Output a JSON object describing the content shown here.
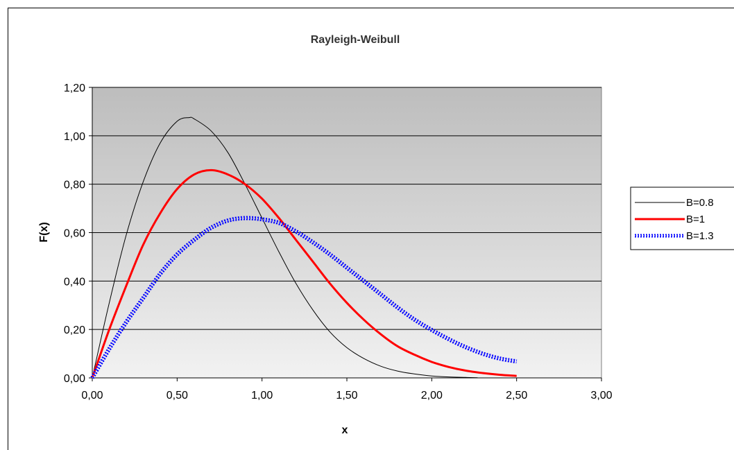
{
  "chart_data": {
    "type": "line",
    "title": "Rayleigh-Weibull",
    "xlabel": "x",
    "ylabel": "F(x)",
    "xlim": [
      0,
      3
    ],
    "ylim": [
      0,
      1.2
    ],
    "x_ticks": [
      "0,00",
      "0,50",
      "1,00",
      "1,50",
      "2,00",
      "2,50",
      "3,00"
    ],
    "y_ticks": [
      "0,00",
      "0,20",
      "0,40",
      "0,60",
      "0,80",
      "1,00",
      "1,20"
    ],
    "grid": "horizontal",
    "legend_position": "right",
    "series": [
      {
        "name": "B=0.8",
        "color": "#000000",
        "style": "thin-line",
        "points": [
          [
            0,
            0
          ],
          [
            0.1,
            0.31
          ],
          [
            0.2,
            0.59
          ],
          [
            0.3,
            0.81
          ],
          [
            0.4,
            0.97
          ],
          [
            0.5,
            1.06
          ],
          [
            0.57,
            1.075
          ],
          [
            0.6,
            1.07
          ],
          [
            0.7,
            1.02
          ],
          [
            0.8,
            0.93
          ],
          [
            0.9,
            0.8
          ],
          [
            1.0,
            0.66
          ],
          [
            1.1,
            0.52
          ],
          [
            1.2,
            0.39
          ],
          [
            1.3,
            0.28
          ],
          [
            1.4,
            0.19
          ],
          [
            1.5,
            0.125
          ],
          [
            1.6,
            0.08
          ],
          [
            1.7,
            0.048
          ],
          [
            1.8,
            0.028
          ],
          [
            1.9,
            0.016
          ],
          [
            2.0,
            0.008
          ],
          [
            2.1,
            0.004
          ],
          [
            2.2,
            0.002
          ],
          [
            2.27,
            0.001
          ]
        ]
      },
      {
        "name": "B=1",
        "color": "#ff0000",
        "style": "thick-line",
        "points": [
          [
            0,
            0
          ],
          [
            0.1,
            0.2
          ],
          [
            0.2,
            0.38
          ],
          [
            0.3,
            0.55
          ],
          [
            0.4,
            0.68
          ],
          [
            0.5,
            0.78
          ],
          [
            0.6,
            0.84
          ],
          [
            0.7,
            0.858
          ],
          [
            0.8,
            0.84
          ],
          [
            0.9,
            0.8
          ],
          [
            1.0,
            0.74
          ],
          [
            1.1,
            0.66
          ],
          [
            1.2,
            0.57
          ],
          [
            1.3,
            0.48
          ],
          [
            1.4,
            0.39
          ],
          [
            1.5,
            0.31
          ],
          [
            1.6,
            0.24
          ],
          [
            1.7,
            0.18
          ],
          [
            1.8,
            0.13
          ],
          [
            1.9,
            0.095
          ],
          [
            2.0,
            0.066
          ],
          [
            2.1,
            0.045
          ],
          [
            2.2,
            0.03
          ],
          [
            2.3,
            0.02
          ],
          [
            2.4,
            0.013
          ],
          [
            2.5,
            0.008
          ]
        ]
      },
      {
        "name": "B=1.3",
        "color": "#0000ff",
        "style": "marker-line",
        "points": [
          [
            0,
            0
          ],
          [
            0.1,
            0.12
          ],
          [
            0.2,
            0.23
          ],
          [
            0.3,
            0.33
          ],
          [
            0.4,
            0.43
          ],
          [
            0.5,
            0.51
          ],
          [
            0.6,
            0.57
          ],
          [
            0.7,
            0.62
          ],
          [
            0.8,
            0.65
          ],
          [
            0.9,
            0.66
          ],
          [
            1.0,
            0.655
          ],
          [
            1.1,
            0.64
          ],
          [
            1.2,
            0.605
          ],
          [
            1.3,
            0.56
          ],
          [
            1.4,
            0.51
          ],
          [
            1.5,
            0.455
          ],
          [
            1.6,
            0.4
          ],
          [
            1.7,
            0.345
          ],
          [
            1.8,
            0.29
          ],
          [
            1.9,
            0.24
          ],
          [
            2.0,
            0.198
          ],
          [
            2.1,
            0.16
          ],
          [
            2.2,
            0.127
          ],
          [
            2.3,
            0.1
          ],
          [
            2.4,
            0.08
          ],
          [
            2.5,
            0.068
          ]
        ]
      }
    ]
  }
}
